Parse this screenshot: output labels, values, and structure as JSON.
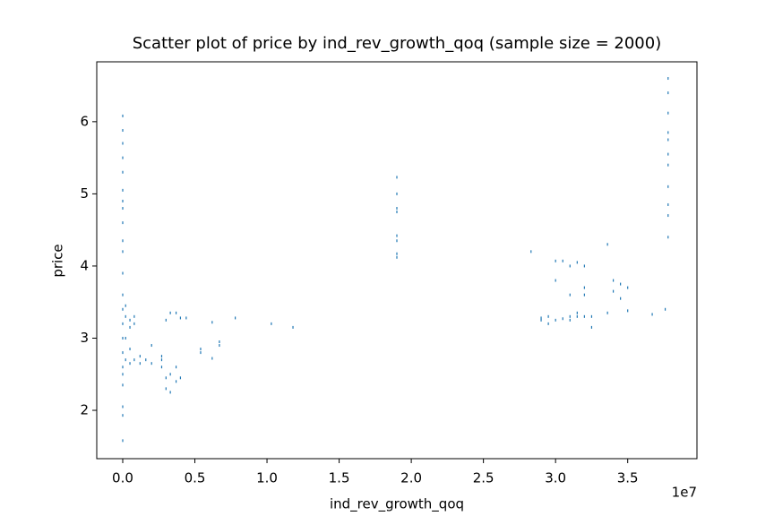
{
  "chart_data": {
    "type": "scatter",
    "title": "Scatter plot of price by ind_rev_growth_qoq (sample size = 2000)",
    "x_label": "ind_rev_growth_qoq",
    "y_label": "price",
    "x_offset_label": "1e7",
    "xlim": [
      -1800000,
      39800000
    ],
    "ylim": [
      1.33,
      6.83
    ],
    "xticks": [
      {
        "value": 0,
        "label": "0.0"
      },
      {
        "value": 5000000,
        "label": "0.5"
      },
      {
        "value": 10000000,
        "label": "1.0"
      },
      {
        "value": 15000000,
        "label": "1.5"
      },
      {
        "value": 20000000,
        "label": "2.0"
      },
      {
        "value": 25000000,
        "label": "2.5"
      },
      {
        "value": 30000000,
        "label": "3.0"
      },
      {
        "value": 35000000,
        "label": "3.5"
      }
    ],
    "yticks": [
      2,
      3,
      4,
      5,
      6
    ],
    "series": [
      {
        "name": "price",
        "color": "#1f77b4",
        "x": [
          0,
          0,
          0,
          0,
          0,
          0,
          0,
          0,
          0,
          0,
          0,
          0,
          0,
          0,
          0,
          0,
          0,
          0,
          0,
          0,
          0,
          0,
          0,
          200000,
          200000,
          200000,
          200000,
          500000,
          500000,
          500000,
          500000,
          800000,
          800000,
          800000,
          1200000,
          1200000,
          1600000,
          2000000,
          2000000,
          2700000,
          2700000,
          2700000,
          3000000,
          3000000,
          3000000,
          3300000,
          3300000,
          3300000,
          3700000,
          3700000,
          3700000,
          4000000,
          4000000,
          4400000,
          5400000,
          5400000,
          6200000,
          6200000,
          6700000,
          6700000,
          7800000,
          10300000,
          11800000,
          19000000,
          19000000,
          19000000,
          19000000,
          19000000,
          19000000,
          19000000,
          19000000,
          28300000,
          29000000,
          29000000,
          29500000,
          29500000,
          30000000,
          30000000,
          30000000,
          30500000,
          30500000,
          31000000,
          31000000,
          31000000,
          31000000,
          31500000,
          31500000,
          31500000,
          32000000,
          32000000,
          32000000,
          32000000,
          32500000,
          32500000,
          33600000,
          33600000,
          34000000,
          34000000,
          34500000,
          34500000,
          35000000,
          35000000,
          36700000,
          37600000,
          37800000,
          37800000,
          37800000,
          37800000,
          37800000,
          37800000,
          37800000,
          37800000,
          37800000,
          37800000,
          37800000
        ],
        "values": [
          1.58,
          1.93,
          2.05,
          2.35,
          2.5,
          2.6,
          2.8,
          3.0,
          3.2,
          3.4,
          3.6,
          3.9,
          4.2,
          4.35,
          4.6,
          4.8,
          4.9,
          5.05,
          5.3,
          5.5,
          5.7,
          5.88,
          6.08,
          2.7,
          3.0,
          3.3,
          3.45,
          2.65,
          2.85,
          3.15,
          3.25,
          2.7,
          3.2,
          3.3,
          2.75,
          2.65,
          2.7,
          2.65,
          2.9,
          2.7,
          2.6,
          2.75,
          2.3,
          2.45,
          3.25,
          2.25,
          2.5,
          3.35,
          2.4,
          2.6,
          3.35,
          2.45,
          3.28,
          3.28,
          2.85,
          2.8,
          3.22,
          2.72,
          2.9,
          2.95,
          3.28,
          3.2,
          3.15,
          4.12,
          4.17,
          4.35,
          4.42,
          4.75,
          4.8,
          5.0,
          5.23,
          4.2,
          3.25,
          3.28,
          3.2,
          3.3,
          3.25,
          3.8,
          4.07,
          3.27,
          4.07,
          3.25,
          3.3,
          3.6,
          4.0,
          3.3,
          3.35,
          4.05,
          3.3,
          3.6,
          3.7,
          4.0,
          3.15,
          3.3,
          3.35,
          4.3,
          3.65,
          3.8,
          3.55,
          3.75,
          3.38,
          3.7,
          3.33,
          3.4,
          4.4,
          4.7,
          4.85,
          5.1,
          5.4,
          5.55,
          5.75,
          5.85,
          6.12,
          6.4,
          6.6
        ]
      }
    ]
  }
}
